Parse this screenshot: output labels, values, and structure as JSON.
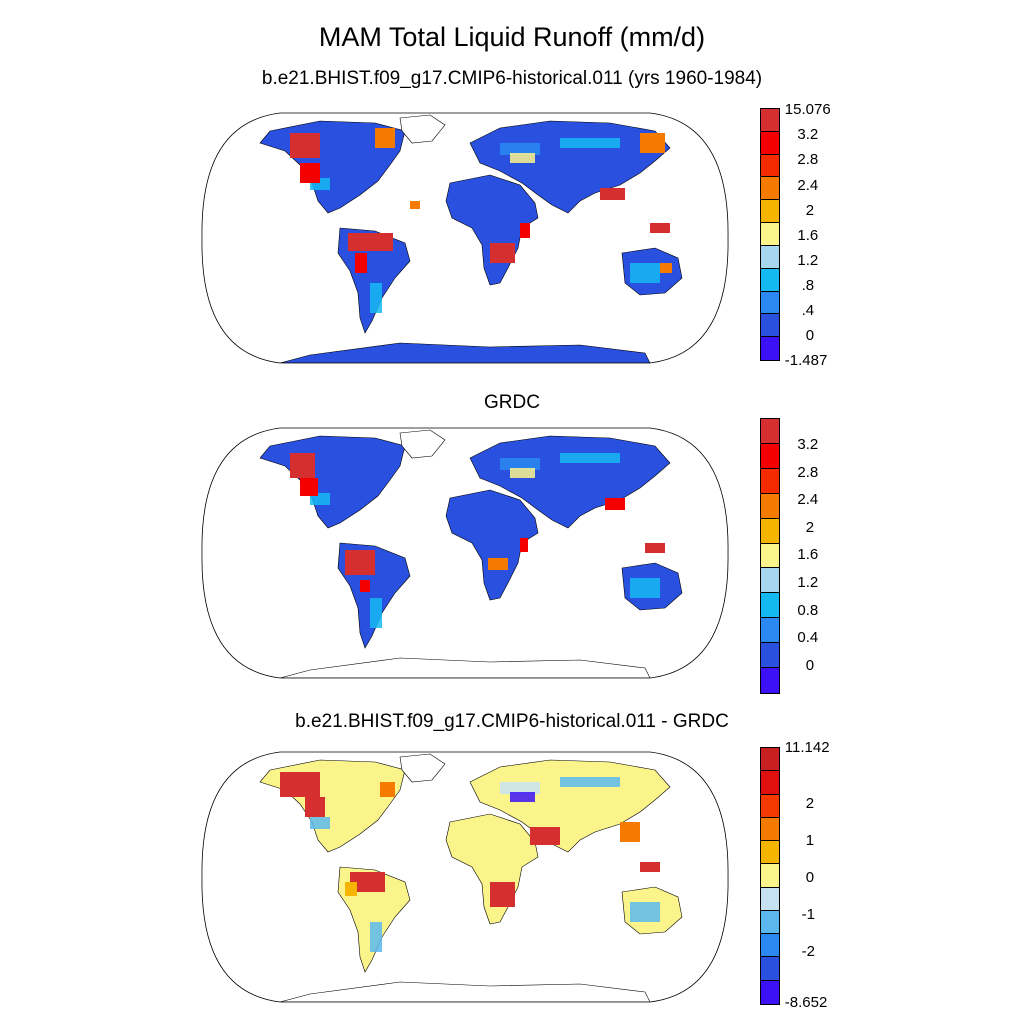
{
  "title": "MAM Total Liquid Runoff (mm/d)",
  "panels": [
    {
      "subtitle": "b.e21.BHIST.f09_g17.CMIP6-historical.011 (yrs 1960-1984)",
      "colorbar": {
        "colors": [
          "#d62f2f",
          "#f40000",
          "#f42a00",
          "#f47a00",
          "#f4b400",
          "#fbf48b",
          "#a6d6f0",
          "#15b9f2",
          "#2a88f0",
          "#2a50e0",
          "#3c11f7"
        ],
        "labels": [
          "15.076",
          "3.2",
          "2.8",
          "2.4",
          "2",
          "1.6",
          "1.2",
          ".8",
          ".4",
          "0",
          "-1.487"
        ]
      }
    },
    {
      "subtitle": "GRDC",
      "colorbar": {
        "colors": [
          "#d62f2f",
          "#f40000",
          "#f42a00",
          "#f47a00",
          "#f4b400",
          "#fbf48b",
          "#a6d6f0",
          "#15b9f2",
          "#2a88f0",
          "#2a50e0",
          "#3c11f7"
        ],
        "labels": [
          "3.2",
          "2.8",
          "2.4",
          "2",
          "1.6",
          "1.2",
          "0.8",
          "0.4",
          "0"
        ]
      }
    },
    {
      "subtitle": "b.e21.BHIST.f09_g17.CMIP6-historical.011 - GRDC",
      "colorbar": {
        "colors": [
          "#c82020",
          "#e01010",
          "#f43a00",
          "#f47a00",
          "#f4b400",
          "#fbf48b",
          "#c6e2f2",
          "#5ab8ee",
          "#2a88f0",
          "#2a50e0",
          "#3c11f7"
        ],
        "labels": [
          "11.142",
          "2",
          "1",
          "0",
          "-1",
          "-2",
          "-8.652"
        ]
      }
    }
  ]
}
